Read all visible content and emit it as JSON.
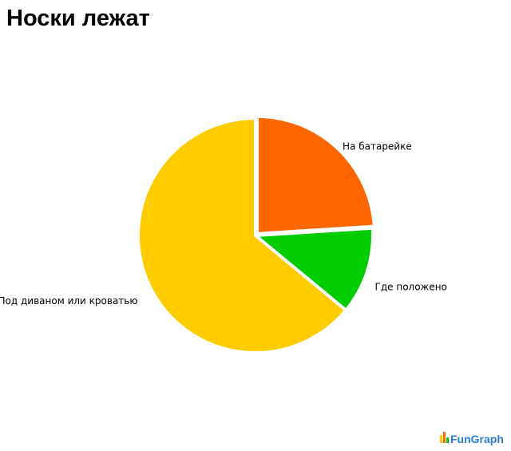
{
  "chart_data": {
    "type": "pie",
    "title": "Носки лежат",
    "categories": [
      "На батарейке",
      "Где положено",
      "Под диваном или кроватью"
    ],
    "values": [
      24,
      12,
      64
    ],
    "colors": [
      "#ff6600",
      "#00cc00",
      "#ffcc00"
    ]
  },
  "watermark": "FunGraph"
}
